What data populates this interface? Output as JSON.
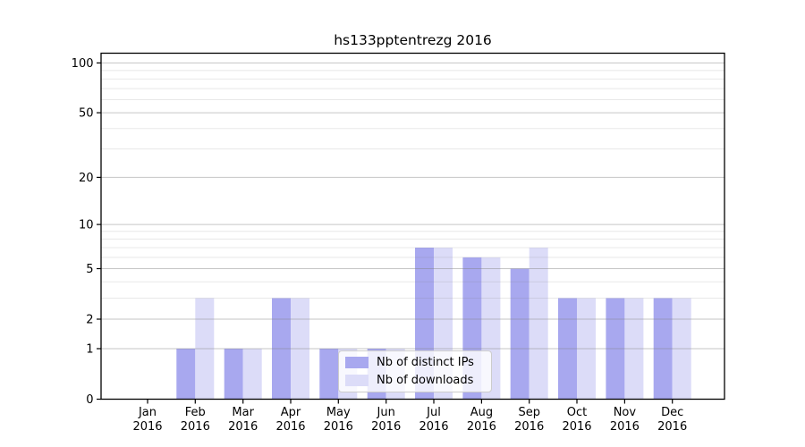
{
  "title": "hs133pptentrezg 2016",
  "chart_data": {
    "type": "bar",
    "title": "hs133pptentrezg 2016",
    "categories": [
      "Jan 2016",
      "Feb 2016",
      "Mar 2016",
      "Apr 2016",
      "May 2016",
      "Jun 2016",
      "Jul 2016",
      "Aug 2016",
      "Sep 2016",
      "Oct 2016",
      "Nov 2016",
      "Dec 2016"
    ],
    "series": [
      {
        "name": "Nb of distinct IPs",
        "color": "#a8a8ef",
        "values": [
          0,
          1,
          1,
          3,
          1,
          1,
          7,
          6,
          5,
          3,
          3,
          3
        ]
      },
      {
        "name": "Nb of downloads",
        "color": "#dcdcf8",
        "values": [
          0,
          3,
          1,
          3,
          1,
          1,
          7,
          6,
          7,
          3,
          3,
          3
        ]
      }
    ],
    "xlabel": "",
    "ylabel": "",
    "yscale": "log1p",
    "ylim": [
      0,
      114
    ],
    "y_major_ticks": [
      0,
      1,
      2,
      5,
      10,
      20,
      50,
      100
    ],
    "y_minor_gridlines": [
      3,
      4,
      6,
      7,
      8,
      9,
      30,
      40,
      60,
      70,
      80,
      90
    ],
    "grid": true,
    "legend_position": "inside-lower-center",
    "colors": {
      "axis": "#000000",
      "major_grid": "rgba(128,128,128,0.45)",
      "minor_grid": "rgba(128,128,128,0.18)",
      "text": "#000000"
    }
  }
}
